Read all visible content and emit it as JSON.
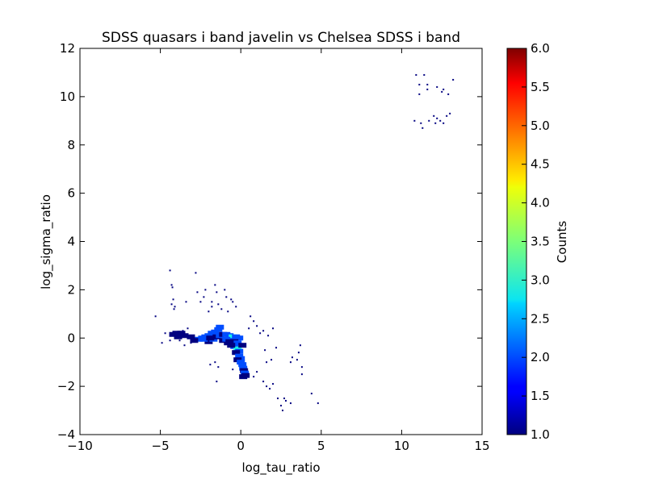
{
  "chart_data": {
    "type": "heatmap",
    "title": "SDSS quasars i band javelin vs Chelsea SDSS i band",
    "xlabel": "log_tau_ratio",
    "ylabel": "log_sigma_ratio",
    "xlim": [
      -10,
      15
    ],
    "ylim": [
      -4,
      12
    ],
    "x_ticks": [
      -10,
      -5,
      0,
      5,
      10,
      15
    ],
    "x_tick_labels": [
      "−10",
      "−5",
      "0",
      "5",
      "10",
      "15"
    ],
    "y_ticks": [
      -4,
      -2,
      0,
      2,
      4,
      6,
      8,
      10,
      12
    ],
    "y_tick_labels": [
      "−4",
      "−2",
      "0",
      "2",
      "4",
      "6",
      "8",
      "10",
      "12"
    ],
    "grid": false,
    "colorbar": {
      "label": "Counts",
      "range": [
        1.0,
        6.0
      ],
      "colormap": "jet",
      "ticks": [
        1.0,
        1.5,
        2.0,
        2.5,
        3.0,
        3.5,
        4.0,
        4.5,
        5.0,
        5.5,
        6.0
      ],
      "tick_labels": [
        "1.0",
        "1.5",
        "2.0",
        "2.5",
        "3.0",
        "3.5",
        "4.0",
        "4.5",
        "5.0",
        "5.5",
        "6.0"
      ]
    },
    "points": [
      [
        -4.4,
        2.8
      ],
      [
        -4.3,
        2.2
      ],
      [
        -4.25,
        2.1
      ],
      [
        -4.2,
        1.6
      ],
      [
        -4.15,
        1.2
      ],
      [
        -4.1,
        1.3
      ],
      [
        -4.3,
        1.4
      ],
      [
        -2.8,
        2.7
      ],
      [
        -2.7,
        1.9
      ],
      [
        -2.2,
        2.0
      ],
      [
        -1.6,
        2.2
      ],
      [
        -1.5,
        1.9
      ],
      [
        -1.0,
        2.0
      ],
      [
        -0.9,
        1.7
      ],
      [
        -1.4,
        1.4
      ],
      [
        -1.8,
        1.5
      ],
      [
        -0.6,
        1.6
      ],
      [
        -0.5,
        1.5
      ],
      [
        -0.3,
        1.3
      ],
      [
        -1.2,
        1.2
      ],
      [
        -1.8,
        1.3
      ],
      [
        -2.0,
        1.1
      ],
      [
        -0.8,
        1.1
      ],
      [
        -2.5,
        1.5
      ],
      [
        -3.4,
        1.5
      ],
      [
        -2.3,
        1.7
      ],
      [
        -5.3,
        0.9
      ],
      [
        -4.7,
        0.2
      ],
      [
        -4.4,
        -0.1
      ],
      [
        -4.9,
        -0.2
      ],
      [
        -3.6,
        0.3
      ],
      [
        -3.3,
        0.4
      ],
      [
        -3.1,
        -0.2
      ],
      [
        -3.5,
        -0.3
      ],
      [
        -3.8,
        -0.1
      ],
      [
        0.6,
        0.9
      ],
      [
        0.8,
        0.7
      ],
      [
        1.0,
        0.5
      ],
      [
        1.2,
        0.2
      ],
      [
        0.5,
        0.4
      ],
      [
        1.4,
        0.3
      ],
      [
        2.0,
        0.4
      ],
      [
        1.7,
        0.1
      ],
      [
        1.5,
        -0.5
      ],
      [
        2.2,
        -0.4
      ],
      [
        1.9,
        -0.9
      ],
      [
        1.6,
        -1.0
      ],
      [
        3.1,
        -1.0
      ],
      [
        3.5,
        -0.9
      ],
      [
        3.7,
        -0.3
      ],
      [
        3.8,
        -1.2
      ],
      [
        3.8,
        -1.5
      ],
      [
        3.6,
        -0.6
      ],
      [
        3.2,
        -0.8
      ],
      [
        1.4,
        -1.8
      ],
      [
        1.8,
        -2.1
      ],
      [
        2.0,
        -1.9
      ],
      [
        1.6,
        -2.0
      ],
      [
        2.3,
        -2.5
      ],
      [
        2.5,
        -2.8
      ],
      [
        2.8,
        -2.6
      ],
      [
        3.1,
        -2.7
      ],
      [
        2.6,
        -3.0
      ],
      [
        2.7,
        -2.5
      ],
      [
        4.4,
        -2.3
      ],
      [
        4.8,
        -2.7
      ],
      [
        1.0,
        -1.4
      ],
      [
        0.8,
        -1.6
      ],
      [
        -1.6,
        -1.0
      ],
      [
        -1.4,
        -1.2
      ],
      [
        -1.9,
        -1.1
      ],
      [
        -1.5,
        -1.8
      ],
      [
        -0.5,
        -1.3
      ],
      [
        10.9,
        10.9
      ],
      [
        11.4,
        10.9
      ],
      [
        11.6,
        10.5
      ],
      [
        11.1,
        10.5
      ],
      [
        11.6,
        10.3
      ],
      [
        12.2,
        10.4
      ],
      [
        12.5,
        10.2
      ],
      [
        12.9,
        10.1
      ],
      [
        12.6,
        10.3
      ],
      [
        11.1,
        10.1
      ],
      [
        13.2,
        10.7
      ],
      [
        10.8,
        9.0
      ],
      [
        11.2,
        8.9
      ],
      [
        11.3,
        8.7
      ],
      [
        11.7,
        9.0
      ],
      [
        12.0,
        9.2
      ],
      [
        12.2,
        9.1
      ],
      [
        12.4,
        9.0
      ],
      [
        12.8,
        9.2
      ],
      [
        13.0,
        9.3
      ],
      [
        12.6,
        8.9
      ],
      [
        12.1,
        8.9
      ]
    ],
    "dense_bins": [
      [
        -2.6,
        -0.05,
        2
      ],
      [
        -2.4,
        0.0,
        2
      ],
      [
        -2.2,
        0.05,
        2
      ],
      [
        -2.0,
        0.1,
        2
      ],
      [
        -1.8,
        0.2,
        2
      ],
      [
        -1.6,
        0.25,
        2
      ],
      [
        -1.4,
        0.35,
        2
      ],
      [
        -1.3,
        0.45,
        2
      ],
      [
        -2.0,
        -0.15,
        1
      ],
      [
        -1.7,
        -0.05,
        2
      ],
      [
        -1.5,
        0.05,
        1
      ],
      [
        -1.3,
        0.1,
        2
      ],
      [
        -1.1,
        0.15,
        1
      ],
      [
        -0.9,
        0.15,
        2
      ],
      [
        -0.7,
        0.1,
        2
      ],
      [
        -0.5,
        0.05,
        3
      ],
      [
        -0.3,
        0.05,
        2
      ],
      [
        -0.1,
        0.0,
        2
      ],
      [
        -0.6,
        -0.1,
        2
      ],
      [
        -0.4,
        -0.15,
        1
      ],
      [
        -0.2,
        -0.2,
        2
      ],
      [
        -0.4,
        -0.35,
        2
      ],
      [
        -0.2,
        -0.45,
        3
      ],
      [
        -0.1,
        -0.55,
        2
      ],
      [
        -0.3,
        -0.6,
        1
      ],
      [
        -0.1,
        -0.75,
        2
      ],
      [
        0.0,
        -0.85,
        2
      ],
      [
        -0.2,
        -0.9,
        1
      ],
      [
        0.0,
        -1.0,
        2
      ],
      [
        0.1,
        -1.1,
        2
      ],
      [
        0.15,
        -1.25,
        2
      ],
      [
        0.2,
        -1.35,
        1
      ],
      [
        0.25,
        -1.45,
        2
      ],
      [
        0.3,
        -1.55,
        1
      ],
      [
        0.15,
        -1.6,
        1
      ],
      [
        -1.1,
        -0.1,
        1
      ],
      [
        -0.8,
        -0.2,
        1
      ],
      [
        -0.6,
        -0.3,
        1
      ],
      [
        -2.9,
        -0.1,
        1
      ],
      [
        -3.1,
        0.05,
        1
      ],
      [
        -2.3,
        -0.05,
        2
      ],
      [
        -1.9,
        0.0,
        1
      ],
      [
        -0.9,
        -0.05,
        2
      ],
      [
        -0.7,
        -0.15,
        1
      ],
      [
        0.1,
        -0.3,
        1
      ],
      [
        -4.2,
        0.15,
        1
      ],
      [
        -4.0,
        0.2,
        1
      ],
      [
        -3.9,
        0.05,
        1
      ],
      [
        -3.7,
        0.2,
        1
      ],
      [
        -3.5,
        0.1,
        1
      ]
    ]
  }
}
